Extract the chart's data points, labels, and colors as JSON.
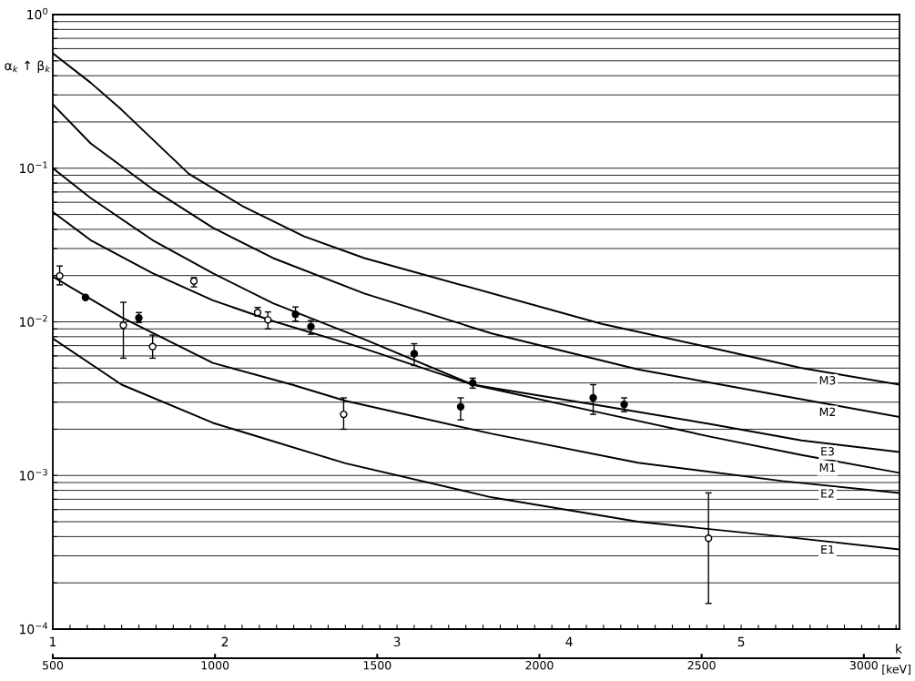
{
  "chart_data": {
    "type": "line",
    "ylabel": "α$_{k}$ ↑ β$_{k}$",
    "xlabel": "k",
    "x2label": "[keV]",
    "log": "y",
    "grid": "y",
    "xlim": [
      1,
      5.92
    ],
    "xticks": [
      1,
      {
        "value": 1.1,
        "label": null
      },
      {
        "value": 1.2,
        "label": null
      },
      {
        "value": 1.3,
        "label": null
      },
      {
        "value": 1.4,
        "label": null
      },
      {
        "value": 1.5,
        "label": null
      },
      {
        "value": 1.6,
        "label": null
      },
      {
        "value": 1.7,
        "label": null
      },
      {
        "value": 1.8,
        "label": null
      },
      {
        "value": 1.9,
        "label": null
      },
      2,
      {
        "value": 2.1,
        "label": null
      },
      {
        "value": 2.2,
        "label": null
      },
      {
        "value": 2.3,
        "label": null
      },
      {
        "value": 2.4,
        "label": null
      },
      {
        "value": 2.5,
        "label": null
      },
      {
        "value": 2.6,
        "label": null
      },
      {
        "value": 2.7,
        "label": null
      },
      {
        "value": 2.8,
        "label": null
      },
      {
        "value": 2.9,
        "label": null
      },
      3,
      {
        "value": 3.1,
        "label": null
      },
      {
        "value": 3.2,
        "label": null
      },
      {
        "value": 3.3,
        "label": null
      },
      {
        "value": 3.4,
        "label": null
      },
      {
        "value": 3.5,
        "label": null
      },
      {
        "value": 3.6,
        "label": null
      },
      {
        "value": 3.7,
        "label": null
      },
      {
        "value": 3.8,
        "label": null
      },
      {
        "value": 3.9,
        "label": null
      },
      4,
      {
        "value": 4.1,
        "label": null
      },
      {
        "value": 4.2,
        "label": null
      },
      {
        "value": 4.3,
        "label": null
      },
      {
        "value": 4.4,
        "label": null
      },
      {
        "value": 4.5,
        "label": null
      },
      {
        "value": 4.6,
        "label": null
      },
      {
        "value": 4.7,
        "label": null
      },
      {
        "value": 4.8,
        "label": null
      },
      {
        "value": 4.9,
        "label": null
      },
      5,
      {
        "value": 5.1,
        "label": null
      },
      {
        "value": 5.2,
        "label": null
      },
      {
        "value": 5.3,
        "label": null
      },
      {
        "value": 5.4,
        "label": null
      },
      {
        "value": 5.5,
        "label": null
      },
      {
        "value": 5.6,
        "label": null
      },
      {
        "value": 5.7,
        "label": null
      },
      {
        "value": 5.8,
        "label": null
      },
      {
        "value": 5.9,
        "label": null
      }
    ],
    "x2lim": [
      500,
      3110
    ],
    "x2ticks": [
      500,
      1000,
      1500,
      2000,
      2500,
      3000
    ],
    "ylim": [
      0.0001,
      1
    ],
    "yticks": [
      {
        "value": 0.0001,
        "label": "10$^{−4}$"
      },
      {
        "value": 0.0002,
        "label": null
      },
      {
        "value": 0.0003,
        "label": null
      },
      {
        "value": 0.0004,
        "label": null
      },
      {
        "value": 0.0005,
        "label": null
      },
      {
        "value": 0.0006,
        "label": null
      },
      {
        "value": 0.0007,
        "label": null
      },
      {
        "value": 0.0008,
        "label": null
      },
      {
        "value": 0.0009,
        "label": null
      },
      {
        "value": 0.001,
        "label": "10$^{−3}$"
      },
      {
        "value": 0.002,
        "label": null
      },
      {
        "value": 0.003,
        "label": null
      },
      {
        "value": 0.004,
        "label": null
      },
      {
        "value": 0.005,
        "label": null
      },
      {
        "value": 0.006,
        "label": null
      },
      {
        "value": 0.007,
        "label": null
      },
      {
        "value": 0.008,
        "label": null
      },
      {
        "value": 0.009,
        "label": null
      },
      {
        "value": 0.01,
        "label": "10$^{−2}$"
      },
      {
        "value": 0.02,
        "label": null
      },
      {
        "value": 0.03,
        "label": null
      },
      {
        "value": 0.04,
        "label": null
      },
      {
        "value": 0.05,
        "label": null
      },
      {
        "value": 0.06,
        "label": null
      },
      {
        "value": 0.07,
        "label": null
      },
      {
        "value": 0.08,
        "label": null
      },
      {
        "value": 0.09,
        "label": null
      },
      {
        "value": 0.1,
        "label": "10$^{−1}$"
      },
      {
        "value": 0.2,
        "label": null
      },
      {
        "value": 0.3,
        "label": null
      },
      {
        "value": 0.4,
        "label": null
      },
      {
        "value": 0.5,
        "label": null
      },
      {
        "value": 0.6,
        "label": null
      },
      {
        "value": 0.7,
        "label": null
      },
      {
        "value": 0.8,
        "label": null
      },
      {
        "value": 0.9,
        "label": null
      },
      {
        "value": 1,
        "label": "10$^{0}$"
      }
    ],
    "series": [
      {
        "name": "M3",
        "color": "#000000",
        "x": [
          1,
          1.22,
          1.4,
          1.79,
          2.11,
          2.46,
          2.81,
          4.19,
          4.82,
          5.35,
          5.92
        ],
        "values": [
          0.56,
          0.36,
          0.24,
          0.092,
          0.056,
          0.036,
          0.026,
          0.0097,
          0.0068,
          0.005,
          0.0039
        ]
      },
      {
        "name": "M2",
        "color": "#000000",
        "x": [
          1,
          1.22,
          1.58,
          1.93,
          2.28,
          2.81,
          3.55,
          4.4,
          5.24,
          5.92
        ],
        "values": [
          0.26,
          0.145,
          0.073,
          0.041,
          0.026,
          0.0153,
          0.0084,
          0.0049,
          0.0033,
          0.0024
        ]
      },
      {
        "name": "E3",
        "color": "#000000",
        "x": [
          1,
          1.22,
          1.58,
          1.93,
          2.28,
          2.81,
          3.44,
          4.19,
          4.82,
          5.35,
          5.92
        ],
        "values": [
          0.052,
          0.034,
          0.0207,
          0.0138,
          0.0101,
          0.0067,
          0.0039,
          0.00284,
          0.00216,
          0.00169,
          0.00142
        ]
      },
      {
        "name": "M1",
        "color": "#000000",
        "x": [
          1,
          1.22,
          1.58,
          1.93,
          2.28,
          2.81,
          3.44,
          4.19,
          4.82,
          5.35,
          5.92
        ],
        "values": [
          0.1,
          0.064,
          0.034,
          0.0207,
          0.0132,
          0.0077,
          0.0039,
          0.00255,
          0.00179,
          0.00136,
          0.00104
        ]
      },
      {
        "name": "E2",
        "color": "#000000",
        "x": [
          1,
          1.4,
          1.93,
          2.39,
          2.7,
          3.55,
          4.4,
          5.24,
          5.92
        ],
        "values": [
          0.0197,
          0.0107,
          0.0054,
          0.0039,
          0.00306,
          0.00187,
          0.00121,
          0.00092,
          0.00077
        ]
      },
      {
        "name": "E1",
        "color": "#000000",
        "x": [
          1,
          1.4,
          1.93,
          2.7,
          3.55,
          4.4,
          5.24,
          5.92
        ],
        "values": [
          0.0078,
          0.0039,
          0.0022,
          0.0012,
          0.00072,
          0.0005,
          0.0004,
          0.00033
        ]
      },
      {
        "type": "scatter",
        "marker": "circle",
        "color": "#000000",
        "x": [
          1.19,
          1.5,
          2.41,
          2.5,
          3.1,
          3.37,
          3.44,
          4.14,
          4.32
        ],
        "values": [
          0.0144,
          0.0106,
          0.0112,
          0.0093,
          0.0062,
          0.0028,
          0.004,
          0.0032,
          0.0029
        ],
        "errors": [
          null,
          [
            0.0099,
            0.0115
          ],
          [
            0.0101,
            0.0125
          ],
          [
            0.0083,
            0.0102
          ],
          [
            0.0052,
            0.0072
          ],
          [
            0.0023,
            0.0032
          ],
          [
            0.0037,
            0.0043
          ],
          [
            0.0025,
            0.0039
          ],
          [
            0.0026,
            0.0032
          ]
        ]
      },
      {
        "type": "scatter",
        "marker": "circle",
        "color": "#ffffff",
        "x": [
          1.04,
          1.41,
          1.58,
          1.82,
          2.19,
          2.25,
          2.69,
          4.81
        ],
        "values": [
          0.0199,
          0.0095,
          0.0069,
          0.0184,
          0.0115,
          0.0103,
          0.0025,
          0.00039
        ],
        "errors": [
          [
            0.0174,
            0.0231
          ],
          [
            0.0058,
            0.0134
          ],
          [
            0.0058,
            0.0082
          ],
          [
            0.0169,
            0.0194
          ],
          [
            0.0109,
            0.0124
          ],
          [
            0.009,
            0.0116
          ],
          [
            0.002,
            0.0032
          ],
          [
            0.000147,
            0.00077
          ]
        ]
      }
    ]
  }
}
